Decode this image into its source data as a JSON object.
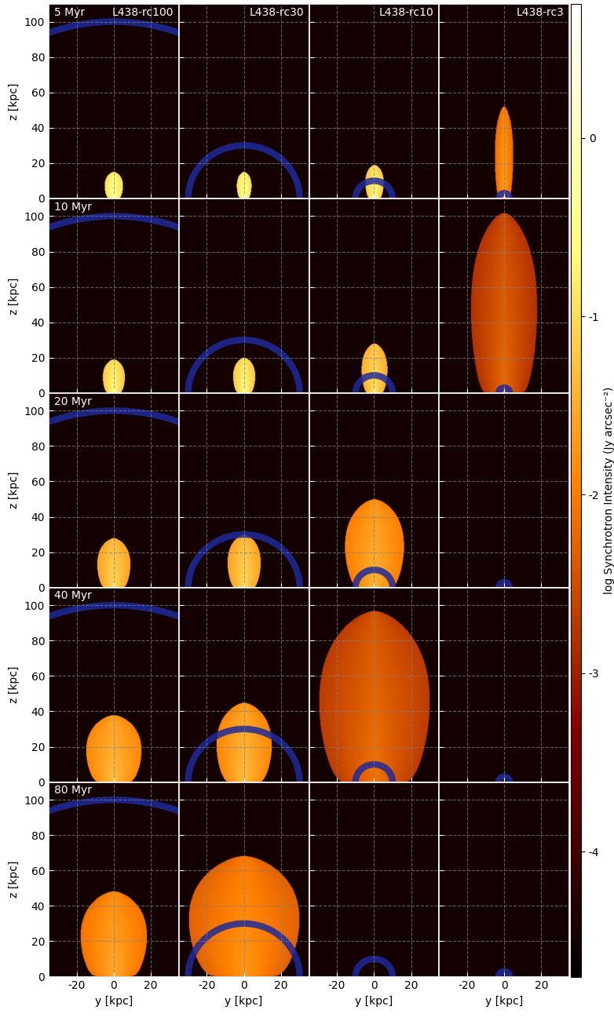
{
  "chart_data": {
    "type": "image_grid",
    "x_label": "y [kpc]",
    "y_label": "z [kpc]",
    "xlim": [
      -35,
      35
    ],
    "ylim": [
      0,
      110
    ],
    "xticks": [
      -20,
      0,
      20
    ],
    "yticks": [
      0,
      20,
      40,
      60,
      80,
      100
    ],
    "grid": true,
    "columns": [
      {
        "name": "L438-rc100",
        "core_radius": 100
      },
      {
        "name": "L438-rc30",
        "core_radius": 30
      },
      {
        "name": "L438-rc10",
        "core_radius": 10
      },
      {
        "name": "L438-rc3",
        "core_radius": 3
      }
    ],
    "rows": [
      {
        "time": "5 Myr",
        "panels": [
          {
            "height": 15,
            "half_width": 5,
            "intensity": -1.0
          },
          {
            "height": 15,
            "half_width": 4,
            "intensity": -1.0
          },
          {
            "height": 19,
            "half_width": 5,
            "intensity": -1.2
          },
          {
            "height": 52,
            "half_width": 5,
            "intensity": -2.2
          }
        ]
      },
      {
        "time": "10 Myr",
        "panels": [
          {
            "height": 19,
            "half_width": 6,
            "intensity": -1.2
          },
          {
            "height": 20,
            "half_width": 6,
            "intensity": -1.2
          },
          {
            "height": 28,
            "half_width": 7,
            "intensity": -1.5
          },
          {
            "height": 102,
            "half_width": 18,
            "intensity": -2.8
          }
        ]
      },
      {
        "time": "20 Myr",
        "panels": [
          {
            "height": 28,
            "half_width": 9,
            "intensity": -1.6
          },
          {
            "height": 30,
            "half_width": 9,
            "intensity": -1.6
          },
          {
            "height": 50,
            "half_width": 16,
            "intensity": -2.0
          },
          null
        ]
      },
      {
        "time": "40 Myr",
        "panels": [
          {
            "height": 38,
            "half_width": 15,
            "intensity": -1.9
          },
          {
            "height": 45,
            "half_width": 15,
            "intensity": -1.9
          },
          {
            "height": 97,
            "half_width": 30,
            "intensity": -2.7
          },
          null
        ]
      },
      {
        "time": "80 Myr",
        "panels": [
          {
            "height": 48,
            "half_width": 18,
            "intensity": -2.1
          },
          {
            "height": 68,
            "half_width": 30,
            "intensity": -2.3
          },
          null,
          null
        ]
      }
    ],
    "colorbar": {
      "label": "log Synchrotron Intensity (Jy arcsec⁻²)",
      "range": [
        -4.7,
        0.75
      ],
      "ticks": [
        0,
        -1,
        -2,
        -3,
        -4
      ]
    }
  }
}
